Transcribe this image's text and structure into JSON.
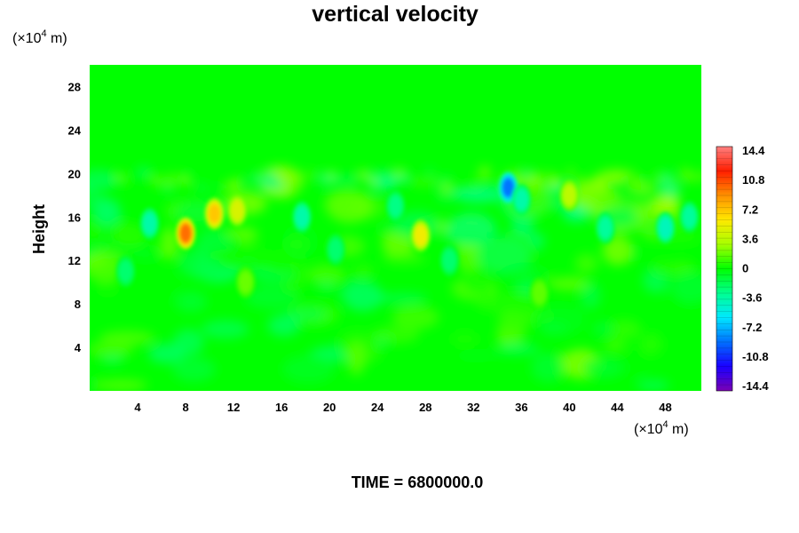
{
  "chart_data": {
    "type": "heatmap",
    "title": "vertical velocity",
    "ylabel": "Height",
    "x_unit_base": "(×10",
    "x_unit_exp": "4",
    "x_unit_tail": " m)",
    "y_unit_base": "(×10",
    "y_unit_exp": "4",
    "y_unit_tail": " m)",
    "xlim": [
      0,
      51
    ],
    "ylim": [
      0,
      30
    ],
    "x_ticks": [
      "4",
      "8",
      "12",
      "16",
      "20",
      "24",
      "28",
      "32",
      "36",
      "40",
      "44",
      "48"
    ],
    "x_tick_values": [
      4,
      8,
      12,
      16,
      20,
      24,
      28,
      32,
      36,
      40,
      44,
      48
    ],
    "y_ticks": [
      "4",
      "8",
      "12",
      "16",
      "20",
      "24",
      "28"
    ],
    "y_tick_values": [
      4,
      8,
      12,
      16,
      20,
      24,
      28
    ],
    "colorbar_labels": [
      "14.4",
      "10.8",
      "7.2",
      "3.6",
      "0",
      "-3.6",
      "-7.2",
      "-10.8",
      "-14.4"
    ],
    "colorbar_range": [
      -14.4,
      14.4
    ],
    "colormap": [
      "#7a00b4",
      "#1a00ff",
      "#0070ff",
      "#00e8ff",
      "#00ff90",
      "#00ff00",
      "#a8ff00",
      "#ffe800",
      "#ff9000",
      "#ff1e00",
      "#ff8080"
    ],
    "background_value": 0,
    "features": [
      {
        "x": 8.0,
        "y": 14.5,
        "value": 10.0
      },
      {
        "x": 10.4,
        "y": 16.3,
        "value": 7.2
      },
      {
        "x": 12.3,
        "y": 16.6,
        "value": 5.0
      },
      {
        "x": 27.6,
        "y": 14.3,
        "value": 6.0
      },
      {
        "x": 40.0,
        "y": 18.0,
        "value": 4.0
      },
      {
        "x": 34.9,
        "y": 18.7,
        "value": -9.0
      },
      {
        "x": 36.0,
        "y": 17.6,
        "value": -4.0
      },
      {
        "x": 5.0,
        "y": 15.4,
        "value": -4.0
      },
      {
        "x": 17.7,
        "y": 16.0,
        "value": -4.0
      },
      {
        "x": 43.0,
        "y": 15.0,
        "value": -3.6
      },
      {
        "x": 48.0,
        "y": 15.0,
        "value": -4.5
      },
      {
        "x": 50.0,
        "y": 16.0,
        "value": -3.6
      },
      {
        "x": 25.5,
        "y": 17.0,
        "value": -3.0
      },
      {
        "x": 3.0,
        "y": 11.0,
        "value": -2.5
      },
      {
        "x": 30.0,
        "y": 12.0,
        "value": -2.5
      },
      {
        "x": 20.5,
        "y": 13.0,
        "value": -2.5
      },
      {
        "x": 13.0,
        "y": 10.0,
        "value": 2.0
      },
      {
        "x": 37.5,
        "y": 9.0,
        "value": 1.8
      }
    ]
  },
  "time_label": "TIME = 6800000.0"
}
